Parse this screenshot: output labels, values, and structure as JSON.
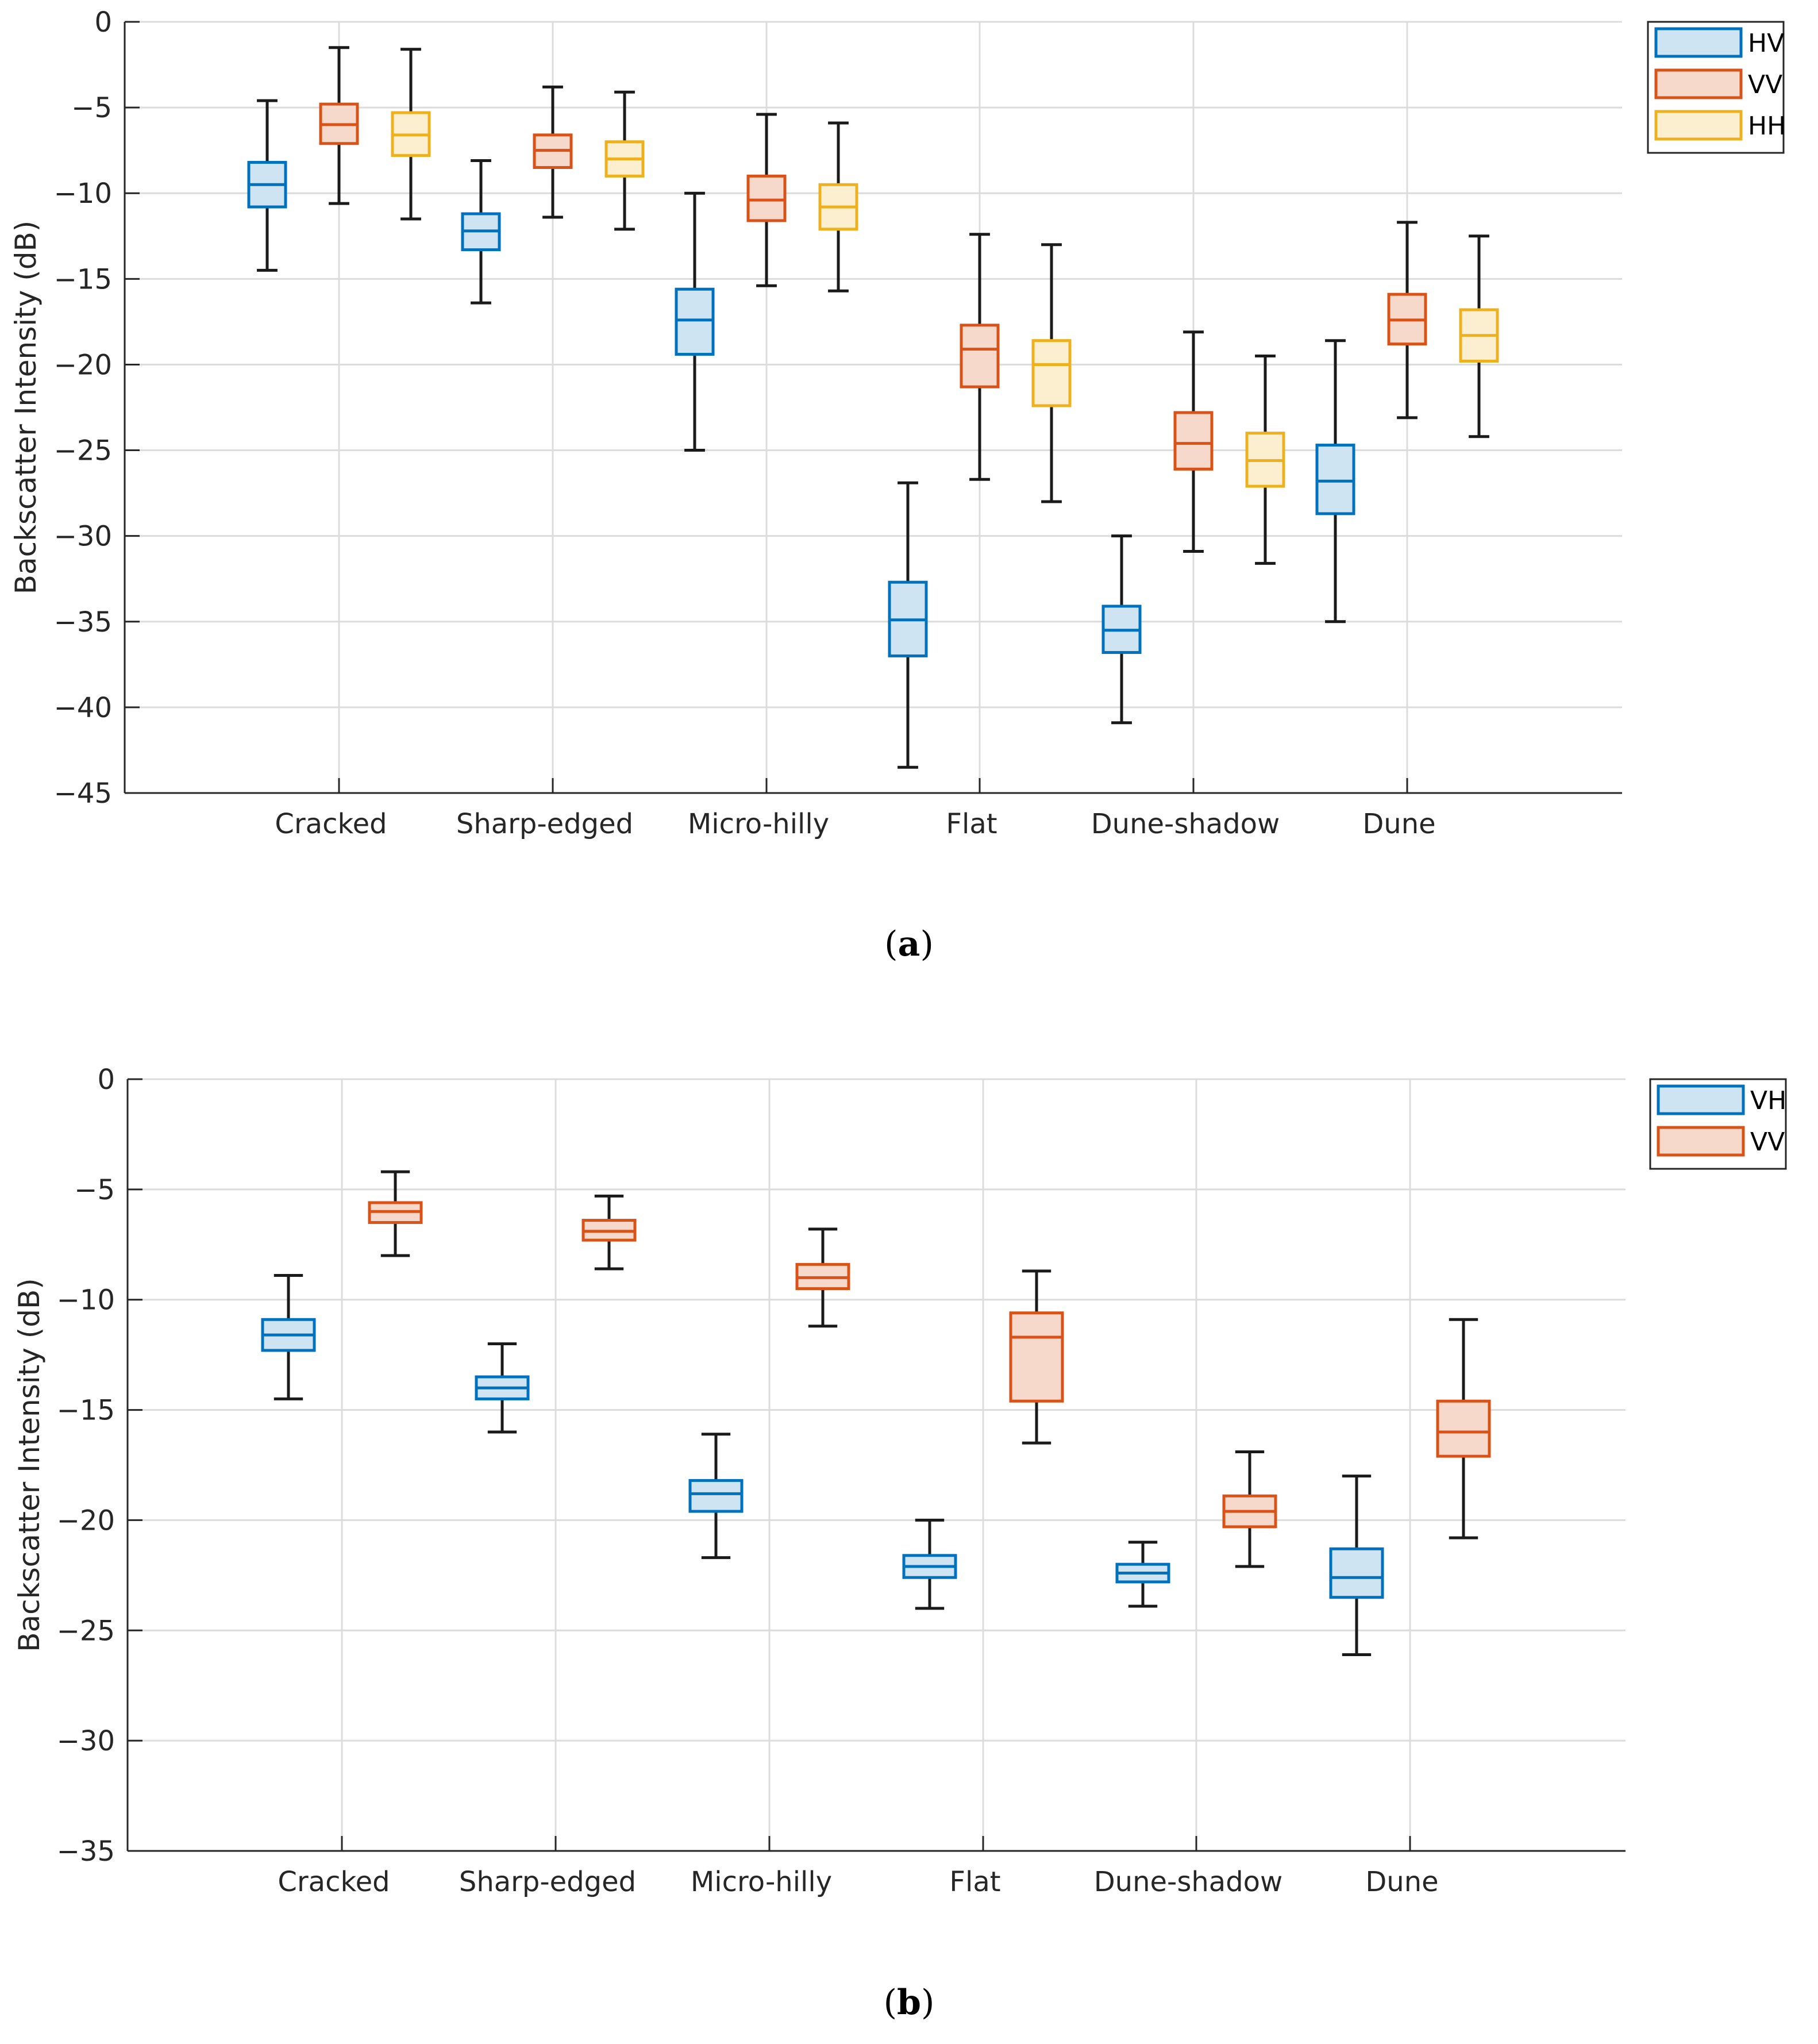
{
  "colors": {
    "HV": {
      "stroke": "#0072BD",
      "fill": "#CFE4F2"
    },
    "VH": {
      "stroke": "#0072BD",
      "fill": "#CFE4F2"
    },
    "VV": {
      "stroke": "#D95319",
      "fill": "#F7D9CC"
    },
    "HH": {
      "stroke": "#EDB120",
      "fill": "#FCEFCF"
    },
    "whisker": "#1a1a1a",
    "grid": "#dcdcdc",
    "axis": "#262626"
  },
  "chart_data": [
    {
      "type": "box",
      "caption": {
        "open": "(",
        "letter": "a",
        "close": ")"
      },
      "ylabel": "Backscatter Intensity (dB)",
      "xlabel": "",
      "ylim": [
        -45,
        0
      ],
      "yticks": [
        0,
        -5,
        -10,
        -15,
        -20,
        -25,
        -30,
        -35,
        -40,
        -45
      ],
      "ytick_labels": [
        "0",
        "−5",
        "−10",
        "−15",
        "−20",
        "−25",
        "−30",
        "−35",
        "−40",
        "−45"
      ],
      "grid": true,
      "legend_position": "top-right (outside)",
      "categories": [
        "Cracked",
        "Sharp-edged",
        "Micro-hilly",
        "Flat",
        "Dune-shadow",
        "Dune"
      ],
      "series": [
        {
          "name": "HV",
          "stats": [
            {
              "min": -14.5,
              "q1": -10.8,
              "median": -9.5,
              "q3": -8.2,
              "max": -4.6
            },
            {
              "min": -16.4,
              "q1": -13.3,
              "median": -12.2,
              "q3": -11.2,
              "max": -8.1
            },
            {
              "min": -25.0,
              "q1": -19.4,
              "median": -17.4,
              "q3": -15.6,
              "max": -10.0
            },
            {
              "min": -43.5,
              "q1": -37.0,
              "median": -34.9,
              "q3": -32.7,
              "max": -26.9
            },
            {
              "min": -40.9,
              "q1": -36.8,
              "median": -35.5,
              "q3": -34.1,
              "max": -30.0
            },
            {
              "min": -35.0,
              "q1": -28.7,
              "median": -26.8,
              "q3": -24.7,
              "max": -18.6
            }
          ]
        },
        {
          "name": "VV",
          "stats": [
            {
              "min": -10.6,
              "q1": -7.1,
              "median": -6.0,
              "q3": -4.8,
              "max": -1.5
            },
            {
              "min": -11.4,
              "q1": -8.5,
              "median": -7.5,
              "q3": -6.6,
              "max": -3.8
            },
            {
              "min": -15.4,
              "q1": -11.6,
              "median": -10.4,
              "q3": -9.0,
              "max": -5.4
            },
            {
              "min": -26.7,
              "q1": -21.3,
              "median": -19.1,
              "q3": -17.7,
              "max": -12.4
            },
            {
              "min": -30.9,
              "q1": -26.1,
              "median": -24.6,
              "q3": -22.8,
              "max": -18.1
            },
            {
              "min": -23.1,
              "q1": -18.8,
              "median": -17.4,
              "q3": -15.9,
              "max": -11.7
            }
          ]
        },
        {
          "name": "HH",
          "stats": [
            {
              "min": -11.5,
              "q1": -7.8,
              "median": -6.6,
              "q3": -5.3,
              "max": -1.6
            },
            {
              "min": -12.1,
              "q1": -9.0,
              "median": -8.0,
              "q3": -7.0,
              "max": -4.1
            },
            {
              "min": -15.7,
              "q1": -12.1,
              "median": -10.8,
              "q3": -9.5,
              "max": -5.9
            },
            {
              "min": -28.0,
              "q1": -22.4,
              "median": -20.0,
              "q3": -18.6,
              "max": -13.0
            },
            {
              "min": -31.6,
              "q1": -27.1,
              "median": -25.6,
              "q3": -24.0,
              "max": -19.5
            },
            {
              "min": -24.2,
              "q1": -19.8,
              "median": -18.3,
              "q3": -16.8,
              "max": -12.5
            }
          ]
        }
      ]
    },
    {
      "type": "box",
      "caption": {
        "open": "(",
        "letter": "b",
        "close": ")"
      },
      "ylabel": "Backscatter Intensity (dB)",
      "xlabel": "",
      "ylim": [
        -35,
        0
      ],
      "yticks": [
        0,
        -5,
        -10,
        -15,
        -20,
        -25,
        -30,
        -35
      ],
      "ytick_labels": [
        "0",
        "−5",
        "−10",
        "−15",
        "−20",
        "−25",
        "−30",
        "−35"
      ],
      "grid": true,
      "legend_position": "top-right (outside)",
      "categories": [
        "Cracked",
        "Sharp-edged",
        "Micro-hilly",
        "Flat",
        "Dune-shadow",
        "Dune"
      ],
      "series": [
        {
          "name": "VH",
          "stats": [
            {
              "min": -14.5,
              "q1": -12.3,
              "median": -11.6,
              "q3": -10.9,
              "max": -8.9
            },
            {
              "min": -16.0,
              "q1": -14.5,
              "median": -14.0,
              "q3": -13.5,
              "max": -12.0
            },
            {
              "min": -21.7,
              "q1": -19.6,
              "median": -18.8,
              "q3": -18.2,
              "max": -16.1
            },
            {
              "min": -24.0,
              "q1": -22.6,
              "median": -22.1,
              "q3": -21.6,
              "max": -20.0
            },
            {
              "min": -23.9,
              "q1": -22.8,
              "median": -22.4,
              "q3": -22.0,
              "max": -21.0
            },
            {
              "min": -26.1,
              "q1": -23.5,
              "median": -22.6,
              "q3": -21.3,
              "max": -18.0
            }
          ]
        },
        {
          "name": "VV",
          "stats": [
            {
              "min": -8.0,
              "q1": -6.5,
              "median": -6.0,
              "q3": -5.6,
              "max": -4.2
            },
            {
              "min": -8.6,
              "q1": -7.3,
              "median": -6.9,
              "q3": -6.4,
              "max": -5.3
            },
            {
              "min": -11.2,
              "q1": -9.5,
              "median": -9.0,
              "q3": -8.4,
              "max": -6.8
            },
            {
              "min": -16.5,
              "q1": -14.6,
              "median": -11.7,
              "q3": -10.6,
              "max": -8.7
            },
            {
              "min": -22.1,
              "q1": -20.3,
              "median": -19.6,
              "q3": -18.9,
              "max": -16.9
            },
            {
              "min": -20.8,
              "q1": -17.1,
              "median": -16.0,
              "q3": -14.6,
              "max": -10.9
            }
          ]
        }
      ]
    }
  ]
}
